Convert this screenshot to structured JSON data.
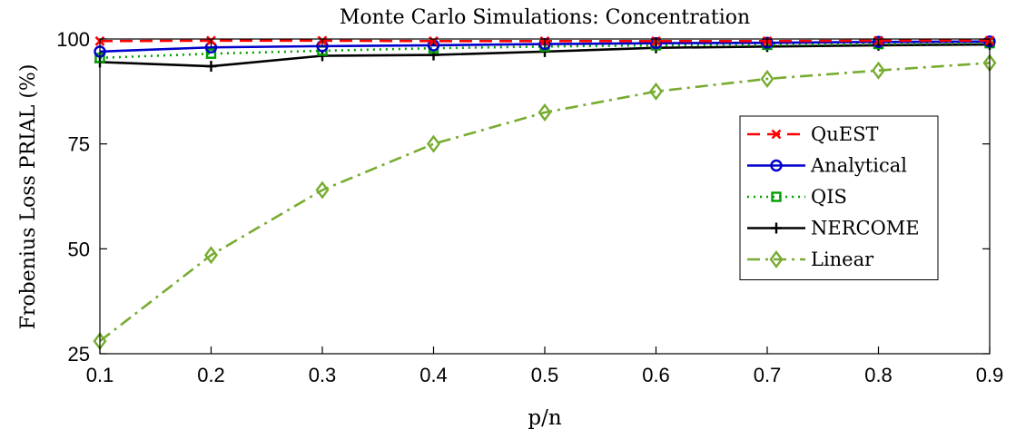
{
  "chart_data": {
    "type": "line",
    "title": "Monte Carlo Simulations: Concentration",
    "xlabel": "p/n",
    "ylabel": "Frobenius Loss PRIAL (%)",
    "xlim": [
      0.1,
      0.9
    ],
    "ylim": [
      25,
      100
    ],
    "xticks": [
      0.1,
      0.2,
      0.3,
      0.4,
      0.5,
      0.6,
      0.7,
      0.8,
      0.9
    ],
    "xtick_labels": [
      "0.1",
      "0.2",
      "0.3",
      "0.4",
      "0.5",
      "0.6",
      "0.7",
      "0.8",
      "0.9"
    ],
    "yticks": [
      25,
      50,
      75,
      100
    ],
    "ytick_labels": [
      "25",
      "50",
      "75",
      "100"
    ],
    "grid": false,
    "legend_position": "right",
    "x": [
      0.1,
      0.2,
      0.3,
      0.4,
      0.5,
      0.6,
      0.7,
      0.8,
      0.9
    ],
    "series": [
      {
        "name": "QuEST",
        "color": "#ff0000",
        "dash": "dashed",
        "marker": "x",
        "values": [
          99.5,
          99.6,
          99.6,
          99.5,
          99.5,
          99.5,
          99.5,
          99.6,
          99.6
        ]
      },
      {
        "name": "Analytical",
        "color": "#0000cc",
        "dash": "solid",
        "marker": "circle",
        "values": [
          97.0,
          98.0,
          98.3,
          98.5,
          98.8,
          99.0,
          99.1,
          99.3,
          99.4
        ]
      },
      {
        "name": "QIS",
        "color": "#00a000",
        "dash": "dotted",
        "marker": "square",
        "values": [
          95.5,
          96.5,
          97.2,
          97.8,
          98.2,
          98.5,
          98.6,
          98.8,
          99.0
        ]
      },
      {
        "name": "NERCOME",
        "color": "#000000",
        "dash": "solid",
        "marker": "plus",
        "values": [
          94.5,
          93.5,
          96.0,
          96.2,
          97.0,
          97.9,
          98.2,
          98.5,
          98.7
        ]
      },
      {
        "name": "Linear",
        "color": "#77ac30",
        "dash": "dashdot",
        "marker": "diamond",
        "values": [
          28.0,
          48.5,
          64.0,
          75.0,
          82.5,
          87.5,
          90.5,
          92.5,
          94.3
        ]
      }
    ]
  }
}
